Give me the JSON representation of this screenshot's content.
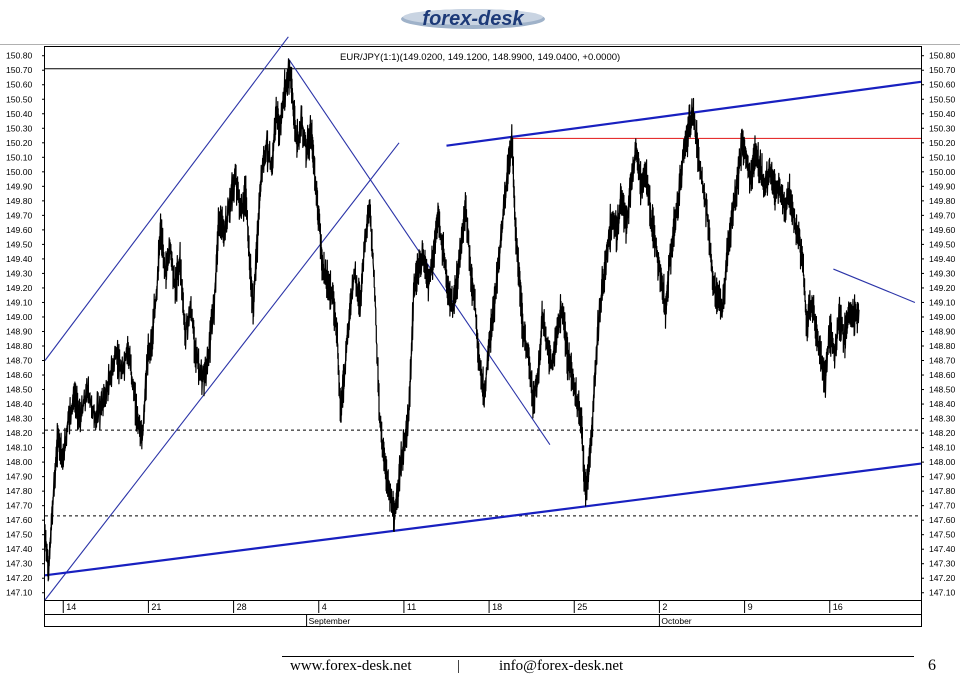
{
  "brand": {
    "logo_text": "forex-desk"
  },
  "chart_data": {
    "type": "line",
    "title": "EUR/JPY(1:1)(149.0200, 149.1200, 148.9900, 149.0400, +0.0000)",
    "ylim": [
      147.05,
      150.86
    ],
    "yticks": [
      "150.80",
      "150.70",
      "150.60",
      "150.50",
      "150.40",
      "150.30",
      "150.20",
      "150.10",
      "150.00",
      "149.90",
      "149.80",
      "149.70",
      "149.60",
      "149.50",
      "149.40",
      "149.30",
      "149.20",
      "149.10",
      "149.00",
      "148.90",
      "148.80",
      "148.70",
      "148.60",
      "148.50",
      "148.40",
      "148.30",
      "148.20",
      "148.10",
      "148.00",
      "147.90",
      "147.80",
      "147.70",
      "147.60",
      "147.50",
      "147.40",
      "147.30",
      "147.20",
      "147.10"
    ],
    "xticks": [
      {
        "label": "14",
        "x": 9
      },
      {
        "label": "21",
        "x": 16
      },
      {
        "label": "28",
        "x": 23
      },
      {
        "label": "4",
        "x": 30
      },
      {
        "label": "11",
        "x": 37
      },
      {
        "label": "18",
        "x": 44
      },
      {
        "label": "25",
        "x": 51
      },
      {
        "label": "2",
        "x": 58
      },
      {
        "label": "9",
        "x": 65
      },
      {
        "label": "16",
        "x": 72
      }
    ],
    "months": [
      {
        "label": "September",
        "x": 29
      },
      {
        "label": "October",
        "x": 58
      }
    ],
    "x_range": [
      7.5,
      79.5
    ],
    "series": [
      {
        "points": [
          [
            7.5,
            147.5
          ],
          [
            7.8,
            147.25
          ],
          [
            8.2,
            147.8
          ],
          [
            8.6,
            148.2
          ],
          [
            9.0,
            148.0
          ],
          [
            9.4,
            148.3
          ],
          [
            9.9,
            148.45
          ],
          [
            10.4,
            148.3
          ],
          [
            11.0,
            148.5
          ],
          [
            11.6,
            148.3
          ],
          [
            12.2,
            148.4
          ],
          [
            12.8,
            148.55
          ],
          [
            13.3,
            148.75
          ],
          [
            13.8,
            148.6
          ],
          [
            14.3,
            148.8
          ],
          [
            14.7,
            148.55
          ],
          [
            15.1,
            148.3
          ],
          [
            15.5,
            148.15
          ],
          [
            15.9,
            148.7
          ],
          [
            16.3,
            148.85
          ],
          [
            16.7,
            149.2
          ],
          [
            17.0,
            149.6
          ],
          [
            17.4,
            149.3
          ],
          [
            17.8,
            149.5
          ],
          [
            18.2,
            149.2
          ],
          [
            18.6,
            149.4
          ],
          [
            19.0,
            148.9
          ],
          [
            19.5,
            149.05
          ],
          [
            19.9,
            148.75
          ],
          [
            20.4,
            148.55
          ],
          [
            20.9,
            148.7
          ],
          [
            21.4,
            149.1
          ],
          [
            21.8,
            149.7
          ],
          [
            22.2,
            149.55
          ],
          [
            22.7,
            149.8
          ],
          [
            23.2,
            149.95
          ],
          [
            23.6,
            149.7
          ],
          [
            24.0,
            149.85
          ],
          [
            24.3,
            149.4
          ],
          [
            24.6,
            149.05
          ],
          [
            25.0,
            149.6
          ],
          [
            25.3,
            150.0
          ],
          [
            25.7,
            150.2
          ],
          [
            26.1,
            150.0
          ],
          [
            26.5,
            150.4
          ],
          [
            26.8,
            150.3
          ],
          [
            27.2,
            150.55
          ],
          [
            27.6,
            150.7
          ],
          [
            27.9,
            150.45
          ],
          [
            28.2,
            150.2
          ],
          [
            28.6,
            150.35
          ],
          [
            29.0,
            150.15
          ],
          [
            29.4,
            150.25
          ],
          [
            29.7,
            149.95
          ],
          [
            30.0,
            149.7
          ],
          [
            30.3,
            149.35
          ],
          [
            30.7,
            149.25
          ],
          [
            31.1,
            149.15
          ],
          [
            31.5,
            148.9
          ],
          [
            31.8,
            148.35
          ],
          [
            32.1,
            148.6
          ],
          [
            32.5,
            149.0
          ],
          [
            32.9,
            149.3
          ],
          [
            33.4,
            149.1
          ],
          [
            33.8,
            149.55
          ],
          [
            34.2,
            149.75
          ],
          [
            34.6,
            149.2
          ],
          [
            35.0,
            148.3
          ],
          [
            35.4,
            148.0
          ],
          [
            35.8,
            147.8
          ],
          [
            36.2,
            147.6
          ],
          [
            36.6,
            147.9
          ],
          [
            37.0,
            148.1
          ],
          [
            37.4,
            148.3
          ],
          [
            37.8,
            149.15
          ],
          [
            38.2,
            149.35
          ],
          [
            38.6,
            149.4
          ],
          [
            39.0,
            149.25
          ],
          [
            39.4,
            149.4
          ],
          [
            39.8,
            149.7
          ],
          [
            40.2,
            149.45
          ],
          [
            40.6,
            149.2
          ],
          [
            41.0,
            149.05
          ],
          [
            41.3,
            149.2
          ],
          [
            41.7,
            149.5
          ],
          [
            42.1,
            149.75
          ],
          [
            42.5,
            149.3
          ],
          [
            42.8,
            149.1
          ],
          [
            43.2,
            148.7
          ],
          [
            43.6,
            148.45
          ],
          [
            44.0,
            148.8
          ],
          [
            44.4,
            149.05
          ],
          [
            44.8,
            149.4
          ],
          [
            45.2,
            149.75
          ],
          [
            45.6,
            150.05
          ],
          [
            45.9,
            150.2
          ],
          [
            46.2,
            149.55
          ],
          [
            46.5,
            149.25
          ],
          [
            46.8,
            148.9
          ],
          [
            47.2,
            148.75
          ],
          [
            47.6,
            148.45
          ],
          [
            48.0,
            148.55
          ],
          [
            48.4,
            149.0
          ],
          [
            48.8,
            148.8
          ],
          [
            49.2,
            148.65
          ],
          [
            49.6,
            148.9
          ],
          [
            50.0,
            149.05
          ],
          [
            50.4,
            148.75
          ],
          [
            50.8,
            148.6
          ],
          [
            51.2,
            148.45
          ],
          [
            51.6,
            148.25
          ],
          [
            51.9,
            147.8
          ],
          [
            52.2,
            147.95
          ],
          [
            52.5,
            148.3
          ],
          [
            52.9,
            148.85
          ],
          [
            53.3,
            149.2
          ],
          [
            53.7,
            149.45
          ],
          [
            54.1,
            149.7
          ],
          [
            54.5,
            149.6
          ],
          [
            54.9,
            149.8
          ],
          [
            55.3,
            149.65
          ],
          [
            55.7,
            149.95
          ],
          [
            56.1,
            150.15
          ],
          [
            56.5,
            149.9
          ],
          [
            56.9,
            150.0
          ],
          [
            57.3,
            149.7
          ],
          [
            57.7,
            149.5
          ],
          [
            58.1,
            149.3
          ],
          [
            58.5,
            149.05
          ],
          [
            58.8,
            149.35
          ],
          [
            59.2,
            149.6
          ],
          [
            59.6,
            149.85
          ],
          [
            60.0,
            150.15
          ],
          [
            60.4,
            150.3
          ],
          [
            60.8,
            150.4
          ],
          [
            61.2,
            150.1
          ],
          [
            61.6,
            149.9
          ],
          [
            62.0,
            149.65
          ],
          [
            62.4,
            149.25
          ],
          [
            62.8,
            149.15
          ],
          [
            63.2,
            149.05
          ],
          [
            63.6,
            149.45
          ],
          [
            64.0,
            149.7
          ],
          [
            64.4,
            149.9
          ],
          [
            64.8,
            150.2
          ],
          [
            65.1,
            150.1
          ],
          [
            65.5,
            149.95
          ],
          [
            65.9,
            150.15
          ],
          [
            66.3,
            150.0
          ],
          [
            66.7,
            149.9
          ],
          [
            67.1,
            150.05
          ],
          [
            67.5,
            149.85
          ],
          [
            67.9,
            149.9
          ],
          [
            68.3,
            149.75
          ],
          [
            68.7,
            149.85
          ],
          [
            69.1,
            149.65
          ],
          [
            69.5,
            149.55
          ],
          [
            69.8,
            149.35
          ],
          [
            70.1,
            148.95
          ],
          [
            70.5,
            149.1
          ],
          [
            70.9,
            148.9
          ],
          [
            71.3,
            148.7
          ],
          [
            71.6,
            148.55
          ],
          [
            72.0,
            148.9
          ],
          [
            72.4,
            148.75
          ],
          [
            72.8,
            149.0
          ],
          [
            73.2,
            148.85
          ],
          [
            73.6,
            149.05
          ],
          [
            74.0,
            149.0
          ],
          [
            74.4,
            149.05
          ]
        ]
      }
    ],
    "lines": [
      {
        "points": [
          [
            7.5,
            148.7
          ],
          [
            27.5,
            150.93
          ]
        ],
        "color": "#2b34a8",
        "width": 1.1
      },
      {
        "points": [
          [
            7.5,
            147.05
          ],
          [
            36.6,
            150.2
          ]
        ],
        "color": "#2b34a8",
        "width": 1.1
      },
      {
        "points": [
          [
            27.5,
            150.78
          ],
          [
            49.0,
            148.12
          ]
        ],
        "color": "#2b34a8",
        "width": 1.1
      },
      {
        "points": [
          [
            7.5,
            147.22
          ],
          [
            79.5,
            147.99
          ]
        ],
        "color": "#1820c0",
        "width": 2.2
      },
      {
        "points": [
          [
            40.5,
            150.18
          ],
          [
            79.5,
            150.62
          ]
        ],
        "color": "#1820c0",
        "width": 2.2
      },
      {
        "points": [
          [
            45.8,
            150.23
          ],
          [
            79.5,
            150.23
          ]
        ],
        "color": "#e53030",
        "width": 1.1
      },
      {
        "points": [
          [
            72.3,
            149.33
          ],
          [
            79.0,
            149.1
          ]
        ],
        "color": "#2b34a8",
        "width": 1.1
      },
      {
        "points": [
          [
            7.5,
            150.71
          ],
          [
            79.5,
            150.71
          ]
        ],
        "color": "#000000",
        "width": 1.0
      },
      {
        "points": [
          [
            7.5,
            148.22
          ],
          [
            79.5,
            148.22
          ]
        ],
        "color": "#000000",
        "width": 1.0,
        "dashed": true
      },
      {
        "points": [
          [
            7.5,
            147.63
          ],
          [
            79.5,
            147.63
          ]
        ],
        "color": "#000000",
        "width": 1.0,
        "dashed": true
      }
    ]
  },
  "footer": {
    "website": "www.forex-desk.net",
    "separator": "|",
    "email": "info@forex-desk.net",
    "page": "6"
  }
}
